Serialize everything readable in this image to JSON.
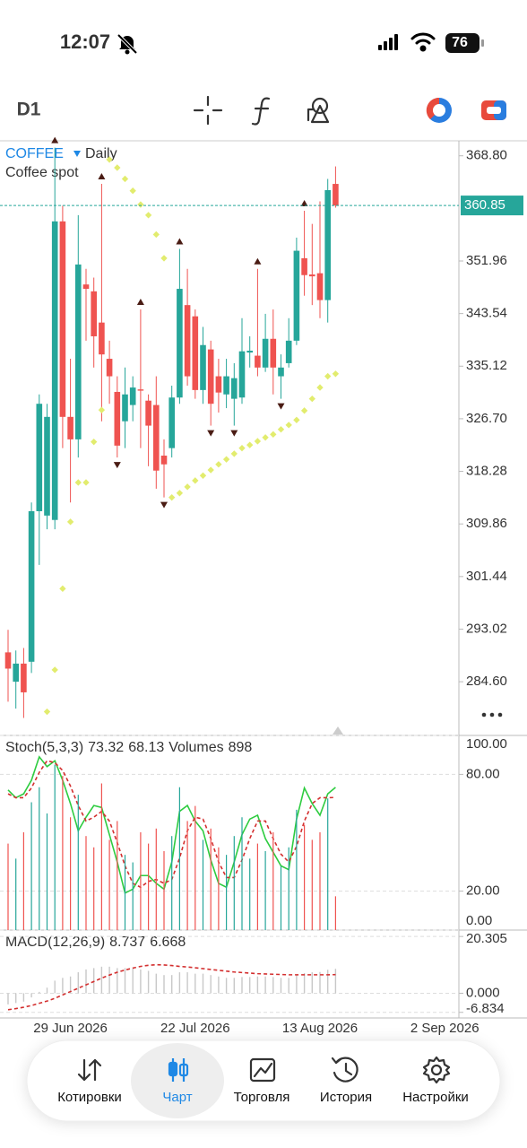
{
  "status_bar": {
    "time": "12:07",
    "battery": "76"
  },
  "toolbar": {
    "timeframe": "D1"
  },
  "chart_data": [
    {
      "type": "candlestick",
      "symbol": "COFFEE",
      "period": "Daily",
      "title": "Coffee spot",
      "up_color": "#26a69a",
      "down_color": "#ef5350",
      "sar_color": "#e2ec6e",
      "fractal_color": "#4a1c14",
      "categories": [
        null,
        null,
        null,
        null,
        null,
        null,
        null,
        null,
        "29 Jun 2026",
        null,
        null,
        null,
        null,
        null,
        null,
        null,
        null,
        null,
        null,
        null,
        null,
        null,
        null,
        null,
        "22 Jul 2026",
        null,
        null,
        null,
        null,
        null,
        null,
        null,
        null,
        null,
        null,
        null,
        null,
        null,
        null,
        null,
        "13 Aug 2026",
        null,
        null,
        null,
        null,
        null,
        null,
        null,
        null,
        null,
        null,
        null,
        null,
        null,
        null,
        null,
        "2 Sep 2026",
        null
      ],
      "open": [
        289.3,
        284.6,
        287.5,
        287.8,
        311.9,
        311.2,
        310.5,
        358.3,
        327.0,
        323.4,
        348.2,
        347.1,
        342.1,
        336.3,
        331.0,
        326.3,
        328.9,
        331.4,
        329.6,
        328.9,
        320.8,
        322.0,
        330.1,
        344.9,
        343.1,
        331.3,
        337.8,
        333.5,
        330.6,
        329.9,
        330.1,
        337.3,
        336.8,
        334.9,
        339.5,
        333.5,
        335.6,
        339.2,
        352.4,
        349.8,
        350.0,
        345.7,
        364.3,
        null,
        null,
        null,
        null,
        null,
        null,
        null,
        null,
        null,
        null,
        null,
        null,
        null,
        null,
        null
      ],
      "high": [
        292.9,
        289.6,
        290.0,
        313.3,
        330.6,
        329.1,
        370.1,
        360.8,
        336.3,
        359.3,
        350.7,
        349.3,
        364.3,
        339.2,
        333.5,
        334.9,
        333.5,
        344.2,
        330.6,
        333.5,
        323.4,
        332.0,
        353.9,
        350.7,
        344.2,
        341.4,
        339.2,
        336.3,
        336.3,
        335.6,
        342.8,
        339.9,
        350.7,
        343.5,
        344.2,
        337.0,
        342.8,
        355.7,
        360.0,
        357.9,
        361.5,
        365.1,
        367.1,
        null,
        null,
        null,
        null,
        null,
        null,
        null,
        null,
        null,
        null,
        null,
        null,
        null,
        null,
        null
      ],
      "low": [
        281.4,
        280.3,
        278.8,
        286.0,
        303.3,
        309.0,
        309.0,
        322.0,
        313.3,
        320.5,
        339.2,
        334.9,
        326.3,
        329.1,
        320.5,
        322.0,
        326.3,
        322.0,
        319.1,
        315.5,
        314.1,
        320.5,
        329.1,
        332.0,
        329.9,
        329.1,
        325.6,
        327.7,
        328.4,
        325.6,
        329.1,
        334.9,
        333.5,
        334.2,
        330.6,
        329.9,
        334.9,
        338.5,
        346.4,
        344.9,
        342.8,
        342.1,
        360.5,
        null,
        null,
        null,
        null,
        null,
        null,
        null,
        null,
        null,
        null,
        null,
        null,
        null,
        null,
        null
      ],
      "close": [
        286.7,
        287.5,
        282.9,
        311.9,
        329.1,
        327.0,
        358.3,
        327.0,
        323.4,
        351.4,
        347.5,
        339.9,
        337.0,
        333.5,
        322.4,
        330.6,
        331.7,
        331.2,
        325.6,
        318.4,
        319.4,
        330.1,
        347.5,
        333.5,
        331.3,
        338.5,
        329.1,
        330.9,
        333.5,
        333.2,
        337.5,
        337.6,
        334.9,
        339.5,
        334.9,
        334.9,
        339.2,
        353.6,
        349.7,
        349.5,
        345.7,
        363.3,
        360.85,
        null,
        null,
        null,
        null,
        null,
        null,
        null,
        null,
        null,
        null,
        null,
        null,
        null,
        null,
        null
      ],
      "sar": [
        null,
        null,
        null,
        null,
        null,
        279.8,
        286.5,
        299.5,
        310.2,
        316.5,
        316.5,
        323.0,
        328.1,
        368.2,
        366.9,
        365.1,
        363.2,
        361.0,
        359.3,
        356.2,
        352.4,
        314.1,
        314.8,
        315.8,
        316.8,
        317.6,
        318.5,
        319.4,
        320.2,
        321.1,
        322.0,
        322.5,
        323.1,
        323.7,
        324.2,
        325.0,
        325.7,
        326.5,
        328.0,
        329.9,
        331.7,
        333.5,
        333.9,
        null,
        null,
        null,
        null,
        null,
        null,
        null,
        null,
        null,
        null,
        null,
        null,
        null,
        null,
        null
      ],
      "fractals_up": [
        6,
        12,
        17,
        22,
        32,
        38
      ],
      "fractals_down": [
        14,
        20,
        26,
        29,
        35
      ],
      "last_price": 360.85,
      "last_price_color": "#26a69a",
      "ylim": [
        276.0,
        371.2
      ],
      "yticks": [
        {
          "value": 368.8,
          "label": "368.80"
        },
        351.96,
        343.54,
        335.12,
        {
          "value": 326.7,
          "label": "326.70"
        },
        318.28,
        309.86,
        301.44,
        293.02,
        {
          "value": 284.6,
          "label": "284.60"
        }
      ]
    },
    {
      "type": "line",
      "title": "Stoch(5,3,3)",
      "ylim": [
        0,
        100
      ],
      "yticks": [
        {
          "value": 100,
          "label": "100.00"
        },
        {
          "value": 80,
          "label": "80.00"
        },
        {
          "value": 20,
          "label": "20.00"
        },
        {
          "value": 0,
          "label": "0.00"
        }
      ],
      "series": [
        {
          "style": "line",
          "color": "#2ecc40",
          "values": [
            72,
            68,
            70,
            77,
            89,
            84,
            87,
            77,
            65,
            51,
            58,
            64,
            63,
            49,
            35,
            19,
            21,
            28,
            28,
            24,
            21,
            35,
            61,
            64,
            56,
            51,
            36,
            24,
            22,
            35,
            49,
            57,
            59,
            47,
            40,
            33,
            31,
            57,
            73,
            65,
            59,
            70,
            73.32,
            null,
            null,
            null,
            null,
            null,
            null,
            null,
            null,
            null,
            null,
            null,
            null,
            null,
            null,
            null
          ]
        },
        {
          "style": "dashed",
          "color": "#d32f2f",
          "values": [
            70,
            68,
            68,
            73,
            81,
            87,
            86,
            82,
            74,
            64,
            56,
            58,
            61,
            56,
            45,
            33,
            24,
            22,
            25,
            26,
            24,
            26,
            37,
            51,
            58,
            57,
            47,
            35,
            27,
            27,
            36,
            47,
            56,
            56,
            47,
            39,
            35,
            43,
            56,
            65,
            68,
            68,
            68.13,
            null,
            null,
            null,
            null,
            null,
            null,
            null,
            null,
            null,
            null,
            null,
            null,
            null,
            null,
            null
          ]
        },
        {
          "style": "volume",
          "name": "Volumes",
          "values": [
            2300,
            1900,
            2600,
            3400,
            3800,
            3100,
            4400,
            4100,
            3000,
            3600,
            2500,
            2200,
            3900,
            2400,
            2900,
            2000,
            1800,
            2600,
            2300,
            2700,
            2100,
            2500,
            3800,
            2900,
            3300,
            2400,
            2700,
            2200,
            2000,
            2500,
            3000,
            1900,
            2300,
            2100,
            2600,
            1700,
            2200,
            3200,
            2800,
            2400,
            2600,
            3500,
            898,
            null,
            null,
            null,
            null,
            null,
            null,
            null,
            null,
            null,
            null,
            null,
            null,
            null,
            null,
            null
          ]
        }
      ]
    },
    {
      "type": "line",
      "title": "MACD(12,26,9)",
      "ylim": [
        -8.84,
        22.6
      ],
      "yticks": [
        20.305,
        {
          "value": 0,
          "label": "0.000"
        },
        -6.834
      ],
      "series": [
        {
          "style": "histogram",
          "color": "#c8c8c8",
          "values": [
            -4,
            -3.5,
            -3,
            -1.5,
            0.5,
            2,
            4.5,
            5.5,
            6,
            7.5,
            8.5,
            9,
            9.5,
            9.5,
            9,
            9,
            8.8,
            8.5,
            8,
            7,
            6.5,
            6.5,
            7.5,
            7.5,
            7,
            7,
            6.5,
            6,
            5.5,
            5.5,
            5.8,
            5.8,
            6,
            6,
            5.8,
            5.5,
            5.5,
            6.5,
            7.2,
            7.5,
            7.6,
            8.4,
            8.737,
            null,
            null,
            null,
            null,
            null,
            null,
            null,
            null,
            null,
            null,
            null,
            null,
            null,
            null,
            null
          ]
        },
        {
          "style": "dashed",
          "color": "#d32f2f",
          "values": [
            -5.9,
            -5.5,
            -5,
            -4.4,
            -3.6,
            -2.8,
            -1.8,
            -0.6,
            0.6,
            1.8,
            3,
            4.2,
            5.4,
            6.5,
            7.5,
            8.3,
            9,
            9.6,
            10,
            10.2,
            10.1,
            9.9,
            9.6,
            9.4,
            9.1,
            8.8,
            8.5,
            8.2,
            7.9,
            7.6,
            7.4,
            7.2,
            7.0,
            6.9,
            6.8,
            6.7,
            6.6,
            6.6,
            6.6,
            6.6,
            6.6,
            6.6,
            6.668,
            null,
            null,
            null,
            null,
            null,
            null,
            null,
            null,
            null,
            null,
            null,
            null,
            null,
            null,
            null
          ]
        }
      ]
    }
  ],
  "tab_bar": [
    {
      "label": "Котировки"
    },
    {
      "label": "Чарт",
      "active": true
    },
    {
      "label": "Торговля"
    },
    {
      "label": "История"
    },
    {
      "label": "Настройки"
    }
  ]
}
